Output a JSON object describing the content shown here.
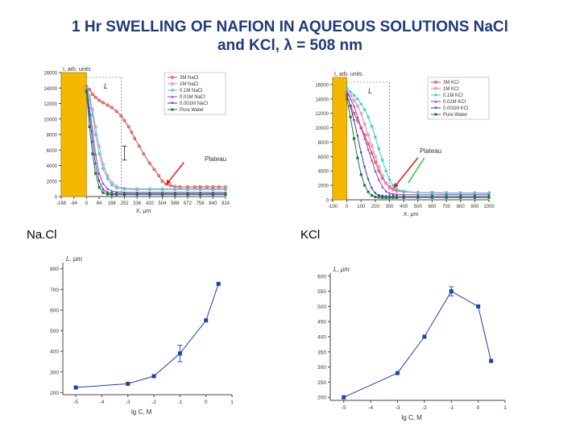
{
  "slide": {
    "title_line1": "1 Hr SWELLING OF NAFION IN AQUEOUS SOLUTIONS NaCl",
    "title_line2": "and KCl, λ = 508 nm",
    "label_nacl": "Na.Cl",
    "label_kcl": "KCl"
  },
  "colors": {
    "title": "#1f3a7a",
    "bar": "#f5b800",
    "arrow_red": "#d62020",
    "arrow_green": "#3cc83c",
    "bottom_series": "#1f3fb5"
  },
  "chart_data": [
    {
      "id": "nacl-profile",
      "type": "line",
      "ylabel": "I, arb. units",
      "xlabel": "X, μm",
      "L_label": "L",
      "annotation": "Plateau",
      "xlim": [
        -168,
        924
      ],
      "ylim": [
        0,
        16000
      ],
      "x_ticks": [
        -168,
        -84,
        0,
        84,
        168,
        252,
        336,
        420,
        504,
        588,
        672,
        756,
        840,
        924
      ],
      "y_ticks": [
        0,
        2000,
        4000,
        6000,
        8000,
        10000,
        12000,
        14000,
        16000
      ],
      "bar": [
        -168,
        0
      ],
      "L_marker_x": 230,
      "errorbar": {
        "x": 252,
        "y": 5600,
        "err": 900
      },
      "plateau_arrow_to": {
        "x": 530,
        "y": 1500
      },
      "series": [
        {
          "name": "3M NaCl",
          "color": "#d64545",
          "marker": "circle",
          "x": [
            0,
            20,
            40,
            60,
            84,
            110,
            140,
            168,
            200,
            230,
            252,
            280,
            300,
            320,
            350,
            380,
            420,
            450,
            480,
            504,
            530,
            560,
            588,
            620,
            672,
            720,
            756,
            800,
            840,
            880,
            924
          ],
          "y": [
            14200,
            13800,
            13200,
            12800,
            12400,
            12100,
            11800,
            11500,
            11000,
            10400,
            9800,
            9000,
            8300,
            7500,
            6500,
            5500,
            4300,
            3500,
            2700,
            2000,
            1600,
            1400,
            1300,
            1250,
            1250,
            1250,
            1250,
            1250,
            1250,
            1250,
            1250
          ]
        },
        {
          "name": "1M NaCl",
          "color": "#ef7ab0",
          "marker": "circle",
          "x": [
            0,
            20,
            40,
            60,
            84,
            110,
            140,
            168,
            200,
            252,
            336,
            420,
            504,
            588,
            672,
            756,
            840,
            924
          ],
          "y": [
            14000,
            13000,
            11200,
            9000,
            6500,
            4200,
            2700,
            1800,
            1300,
            1050,
            1000,
            1000,
            1000,
            1000,
            1000,
            1000,
            1000,
            1000
          ]
        },
        {
          "name": "0.1M NaCl",
          "color": "#2ed8d0",
          "marker": "square",
          "x": [
            0,
            20,
            40,
            60,
            84,
            110,
            140,
            168,
            200,
            252,
            336,
            420,
            504,
            588,
            672,
            756,
            840,
            924
          ],
          "y": [
            14000,
            12500,
            10500,
            8000,
            5500,
            3600,
            2300,
            1500,
            1100,
            950,
            900,
            900,
            900,
            900,
            900,
            900,
            900,
            900
          ]
        },
        {
          "name": "0.01M NaCl",
          "color": "#9b3fc0",
          "marker": "triangle",
          "x": [
            0,
            20,
            40,
            60,
            84,
            110,
            140,
            168,
            200,
            252,
            336,
            420,
            504,
            588,
            672,
            756,
            840,
            924
          ],
          "y": [
            13800,
            11500,
            8500,
            5500,
            3000,
            1700,
            1000,
            700,
            600,
            550,
            550,
            550,
            550,
            550,
            550,
            550,
            550,
            550
          ]
        },
        {
          "name": "0.001M NaCl",
          "color": "#3a3ab0",
          "marker": "triangle-down",
          "x": [
            0,
            20,
            40,
            60,
            84,
            110,
            140,
            168,
            200,
            252,
            336,
            420,
            504,
            588,
            672,
            756,
            840,
            924
          ],
          "y": [
            13600,
            10500,
            7000,
            4200,
            2000,
            900,
            500,
            400,
            400,
            400,
            400,
            400,
            400,
            400,
            400,
            400,
            400,
            400
          ]
        },
        {
          "name": "Pure Water",
          "color": "#1e7a3a",
          "marker": "square",
          "x": [
            0,
            20,
            40,
            60,
            84,
            110,
            140,
            168,
            200,
            252,
            336,
            420,
            504,
            588,
            672,
            756,
            840,
            924
          ],
          "y": [
            13500,
            9000,
            5500,
            3000,
            1200,
            500,
            300,
            250,
            250,
            250,
            250,
            250,
            250,
            250,
            250,
            250,
            250,
            250
          ]
        }
      ]
    },
    {
      "id": "kcl-profile",
      "type": "line",
      "ylabel": "I, arb. units",
      "xlabel": "X, μm",
      "L_label": "L",
      "annotation": "Plateau",
      "xlim": [
        -100,
        1000
      ],
      "ylim": [
        0,
        17000
      ],
      "x_ticks": [
        -100,
        0,
        100,
        200,
        300,
        400,
        500,
        600,
        700,
        800,
        900,
        1000
      ],
      "y_ticks": [
        0,
        2000,
        4000,
        6000,
        8000,
        10000,
        12000,
        14000,
        16000
      ],
      "bar": [
        -100,
        0
      ],
      "L_marker_x": 300,
      "red_arrow_to": {
        "x": 330,
        "y": 1600
      },
      "green_arrow_to": {
        "x": 420,
        "y": 2000
      },
      "series": [
        {
          "name": "3M KCl",
          "color": "#d64545",
          "marker": "circle",
          "x": [
            0,
            25,
            50,
            75,
            100,
            125,
            150,
            175,
            200,
            225,
            250,
            275,
            300,
            325,
            350,
            400,
            500,
            600,
            700,
            800,
            900,
            1000
          ],
          "y": [
            14500,
            13000,
            12000,
            11000,
            10000,
            9000,
            7800,
            6500,
            5200,
            4000,
            3000,
            2300,
            1800,
            1500,
            1300,
            1100,
            1000,
            1000,
            950,
            950,
            950,
            950
          ]
        },
        {
          "name": "1M KCl",
          "color": "#ef7ab0",
          "marker": "circle",
          "x": [
            0,
            25,
            50,
            75,
            100,
            125,
            150,
            175,
            200,
            225,
            250,
            275,
            300,
            325,
            350,
            400,
            500,
            600,
            700,
            800,
            900,
            1000
          ],
          "y": [
            15000,
            14500,
            13800,
            13000,
            12000,
            10500,
            9000,
            7500,
            6000,
            4600,
            3300,
            2300,
            1700,
            1400,
            1200,
            1100,
            1000,
            1000,
            950,
            950,
            950,
            950
          ]
        },
        {
          "name": "0.1M KCl",
          "color": "#2ed8d0",
          "marker": "square",
          "x": [
            0,
            25,
            50,
            75,
            100,
            125,
            150,
            175,
            200,
            225,
            250,
            275,
            300,
            325,
            350,
            400,
            500,
            600,
            700,
            800,
            900,
            1000
          ],
          "y": [
            15500,
            15000,
            14500,
            14000,
            13300,
            12500,
            11500,
            10200,
            8700,
            7100,
            5500,
            4000,
            2800,
            2000,
            1500,
            1200,
            1000,
            950,
            900,
            900,
            900,
            900
          ]
        },
        {
          "name": "0.01M KCl",
          "color": "#9b3fc0",
          "marker": "triangle",
          "x": [
            0,
            25,
            50,
            75,
            100,
            125,
            150,
            175,
            200,
            225,
            250,
            275,
            300,
            325,
            350,
            400,
            500,
            600,
            700,
            800,
            900,
            1000
          ],
          "y": [
            15000,
            14000,
            13000,
            11500,
            10000,
            8500,
            7000,
            5500,
            4000,
            2800,
            1800,
            1200,
            900,
            800,
            750,
            700,
            700,
            700,
            700,
            700,
            700,
            700
          ]
        },
        {
          "name": "0.001M KCl",
          "color": "#3a3ab0",
          "marker": "triangle-down",
          "x": [
            0,
            25,
            50,
            75,
            100,
            125,
            150,
            175,
            200,
            225,
            250,
            275,
            300,
            325,
            350,
            400,
            500,
            600,
            700,
            800,
            900,
            1000
          ],
          "y": [
            14500,
            13000,
            11000,
            8800,
            6500,
            4500,
            2800,
            1600,
            900,
            600,
            500,
            450,
            450,
            450,
            450,
            450,
            450,
            450,
            450,
            450,
            450,
            450
          ]
        },
        {
          "name": "Pure Water",
          "color": "#1e7a3a",
          "marker": "square",
          "x": [
            0,
            25,
            50,
            75,
            100,
            125,
            150,
            175,
            200,
            225,
            250,
            275,
            300,
            325,
            350,
            400,
            500,
            600,
            700,
            800,
            900,
            1000
          ],
          "y": [
            14000,
            11500,
            8500,
            5800,
            3500,
            2000,
            1100,
            600,
            400,
            350,
            300,
            300,
            300,
            300,
            300,
            300,
            300,
            300,
            300,
            300,
            300,
            300
          ]
        }
      ]
    },
    {
      "id": "nacl-length",
      "type": "line",
      "ylabel": "L, μm",
      "xlabel": "lg C, M",
      "xlim": [
        -5.5,
        1
      ],
      "ylim": [
        190,
        830
      ],
      "x_ticks": [
        -5,
        -4,
        -3,
        -2,
        -1,
        0,
        1
      ],
      "y_ticks": [
        200,
        300,
        400,
        500,
        600,
        700,
        800
      ],
      "series": [
        {
          "color": "#1f3fb5",
          "x": [
            -5,
            -3,
            -2,
            -1,
            0,
            0.48
          ],
          "y": [
            225,
            243,
            280,
            390,
            550,
            727
          ],
          "err": [
            0,
            0,
            0,
            40,
            0,
            0
          ]
        }
      ]
    },
    {
      "id": "kcl-length",
      "type": "line",
      "ylabel": "L, μm",
      "xlabel": "lg C, M",
      "xlim": [
        -5.5,
        1
      ],
      "ylim": [
        190,
        610
      ],
      "x_ticks": [
        -5,
        -4,
        -3,
        -2,
        -1,
        0,
        1
      ],
      "y_ticks": [
        200,
        250,
        300,
        350,
        400,
        450,
        500,
        550,
        600
      ],
      "series": [
        {
          "color": "#1f3fb5",
          "x": [
            -5,
            -3,
            -2,
            -1,
            0,
            0.48
          ],
          "y": [
            200,
            280,
            400,
            550,
            500,
            320
          ],
          "err": [
            0,
            0,
            0,
            15,
            0,
            0
          ]
        }
      ]
    }
  ]
}
